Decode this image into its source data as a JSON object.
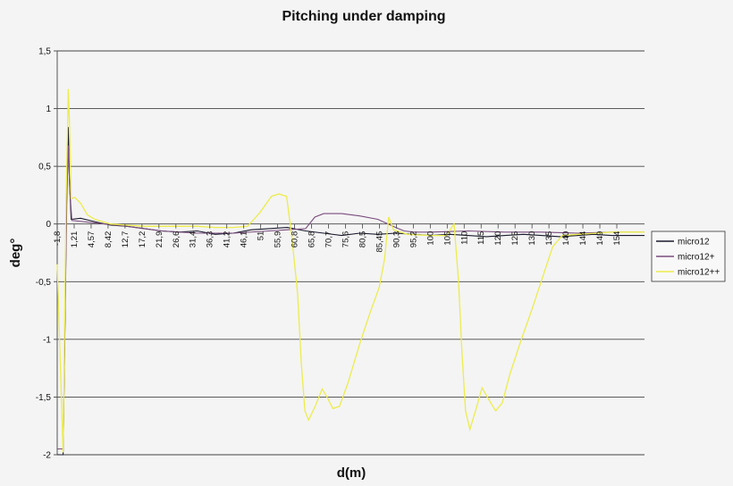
{
  "chart_data": {
    "type": "line",
    "title": "Pitching under damping",
    "xlabel": "d(m)",
    "ylabel": "deg°",
    "ylim": [
      -2,
      1.5
    ],
    "yticks": [
      "1,5",
      "1",
      "0,5",
      "0",
      "-0,5",
      "-1",
      "-1,5",
      "-2"
    ],
    "ytick_values": [
      1.5,
      1,
      0.5,
      0,
      -0.5,
      -1,
      -1.5,
      -2
    ],
    "xlim": [
      -1.8,
      158
    ],
    "categories": [
      "-1,8",
      "1,21",
      "4,57",
      "8,42",
      "12,7",
      "17,2",
      "21,9",
      "26,6",
      "31,4",
      "36,3",
      "41,2",
      "46,1",
      "51",
      "55,9",
      "60,8",
      "65,8",
      "70,7",
      "75,6",
      "80,5",
      "85,45",
      "90,3",
      "95,2",
      "100",
      "105",
      "110",
      "115",
      "120",
      "125",
      "130",
      "135",
      "140",
      "144",
      "149",
      "154"
    ],
    "grid": true,
    "legend_position": "right",
    "series": [
      {
        "name": "micro12",
        "color": "#1a1a2e",
        "points": [
          [
            -1.8,
            -2
          ],
          [
            -0.2,
            -2
          ],
          [
            0.7,
            0.1
          ],
          [
            1.0,
            0.6
          ],
          [
            1.21,
            0.84
          ],
          [
            1.5,
            0.4
          ],
          [
            2.0,
            0.04
          ],
          [
            4.57,
            0.05
          ],
          [
            8.42,
            0.02
          ],
          [
            12.7,
            -0.01
          ],
          [
            17.2,
            -0.02
          ],
          [
            21.9,
            -0.04
          ],
          [
            26.6,
            -0.06
          ],
          [
            31.4,
            -0.07
          ],
          [
            36.3,
            -0.06
          ],
          [
            41.2,
            -0.09
          ],
          [
            46.1,
            -0.08
          ],
          [
            51,
            -0.05
          ],
          [
            55.9,
            -0.04
          ],
          [
            60.8,
            -0.03
          ],
          [
            65.8,
            -0.06
          ],
          [
            70.7,
            -0.08
          ],
          [
            75.6,
            -0.1
          ],
          [
            80.5,
            -0.08
          ],
          [
            85.45,
            -0.09
          ],
          [
            90.3,
            -0.08
          ],
          [
            95.2,
            -0.09
          ],
          [
            100,
            -0.1
          ],
          [
            105,
            -0.09
          ],
          [
            110,
            -0.1
          ],
          [
            115,
            -0.11
          ],
          [
            120,
            -0.1
          ],
          [
            125,
            -0.09
          ],
          [
            130,
            -0.1
          ],
          [
            135,
            -0.11
          ],
          [
            140,
            -0.1
          ],
          [
            144,
            -0.09
          ],
          [
            149,
            -0.1
          ],
          [
            154,
            -0.1
          ],
          [
            158,
            -0.1
          ]
        ]
      },
      {
        "name": "micro12+",
        "color": "#7a4c7e",
        "points": [
          [
            -1.8,
            -1.95
          ],
          [
            -0.2,
            -1.95
          ],
          [
            0.8,
            0.2
          ],
          [
            1.21,
            0.68
          ],
          [
            1.6,
            0.3
          ],
          [
            2.2,
            0.03
          ],
          [
            8.42,
            0.01
          ],
          [
            17.2,
            -0.02
          ],
          [
            26.6,
            -0.06
          ],
          [
            36.3,
            -0.08
          ],
          [
            46.1,
            -0.08
          ],
          [
            55.9,
            -0.06
          ],
          [
            60.8,
            -0.05
          ],
          [
            65.8,
            -0.04
          ],
          [
            68.3,
            0.06
          ],
          [
            70.7,
            0.09
          ],
          [
            75.6,
            0.09
          ],
          [
            80.5,
            0.07
          ],
          [
            85.45,
            0.04
          ],
          [
            90.3,
            -0.03
          ],
          [
            92.6,
            -0.06
          ],
          [
            95.2,
            -0.07
          ],
          [
            100,
            -0.07
          ],
          [
            110,
            -0.06
          ],
          [
            120,
            -0.07
          ],
          [
            130,
            -0.07
          ],
          [
            140,
            -0.08
          ],
          [
            149,
            -0.07
          ],
          [
            158,
            -0.07
          ]
        ]
      },
      {
        "name": "micro12++",
        "color": "#ecec4e",
        "points": [
          [
            -1.8,
            -0.35
          ],
          [
            -0.2,
            -1.98
          ],
          [
            0.6,
            0.2
          ],
          [
            1.0,
            0.8
          ],
          [
            1.21,
            1.17
          ],
          [
            1.5,
            0.9
          ],
          [
            2.0,
            0.22
          ],
          [
            3.0,
            0.23
          ],
          [
            4.57,
            0.18
          ],
          [
            6.4,
            0.08
          ],
          [
            8.42,
            0.04
          ],
          [
            12.7,
            0.0
          ],
          [
            17.2,
            -0.01
          ],
          [
            21.9,
            -0.02
          ],
          [
            26.6,
            -0.02
          ],
          [
            31.4,
            -0.02
          ],
          [
            36.3,
            -0.02
          ],
          [
            41.2,
            -0.03
          ],
          [
            46.1,
            -0.03
          ],
          [
            50,
            -0.02
          ],
          [
            53.4,
            0.1
          ],
          [
            56.5,
            0.24
          ],
          [
            58.5,
            0.26
          ],
          [
            60.6,
            0.24
          ],
          [
            62.0,
            -0.1
          ],
          [
            63.6,
            -0.6
          ],
          [
            64.6,
            -1.2
          ],
          [
            65.6,
            -1.62
          ],
          [
            66.6,
            -1.7
          ],
          [
            68.4,
            -1.58
          ],
          [
            70.3,
            -1.43
          ],
          [
            71.6,
            -1.5
          ],
          [
            73.2,
            -1.6
          ],
          [
            75.0,
            -1.58
          ],
          [
            77.3,
            -1.38
          ],
          [
            80.6,
            -1.03
          ],
          [
            83.2,
            -0.78
          ],
          [
            85.8,
            -0.55
          ],
          [
            87.3,
            -0.3
          ],
          [
            88.4,
            0.06
          ],
          [
            89.7,
            -0.05
          ],
          [
            93.5,
            -0.09
          ],
          [
            100,
            -0.1
          ],
          [
            104,
            -0.1
          ],
          [
            106.2,
            0.0
          ],
          [
            107.4,
            -0.5
          ],
          [
            108.3,
            -1.1
          ],
          [
            109.3,
            -1.62
          ],
          [
            110.5,
            -1.78
          ],
          [
            112.2,
            -1.6
          ],
          [
            113.8,
            -1.42
          ],
          [
            115.6,
            -1.52
          ],
          [
            117.5,
            -1.62
          ],
          [
            119.3,
            -1.55
          ],
          [
            121.4,
            -1.3
          ],
          [
            124.3,
            -1.02
          ],
          [
            127.6,
            -0.72
          ],
          [
            130.4,
            -0.45
          ],
          [
            133.0,
            -0.2
          ],
          [
            135.6,
            -0.1
          ],
          [
            140,
            -0.09
          ],
          [
            145,
            -0.08
          ],
          [
            149,
            -0.07
          ],
          [
            154,
            -0.07
          ],
          [
            158,
            -0.07
          ]
        ]
      }
    ]
  }
}
